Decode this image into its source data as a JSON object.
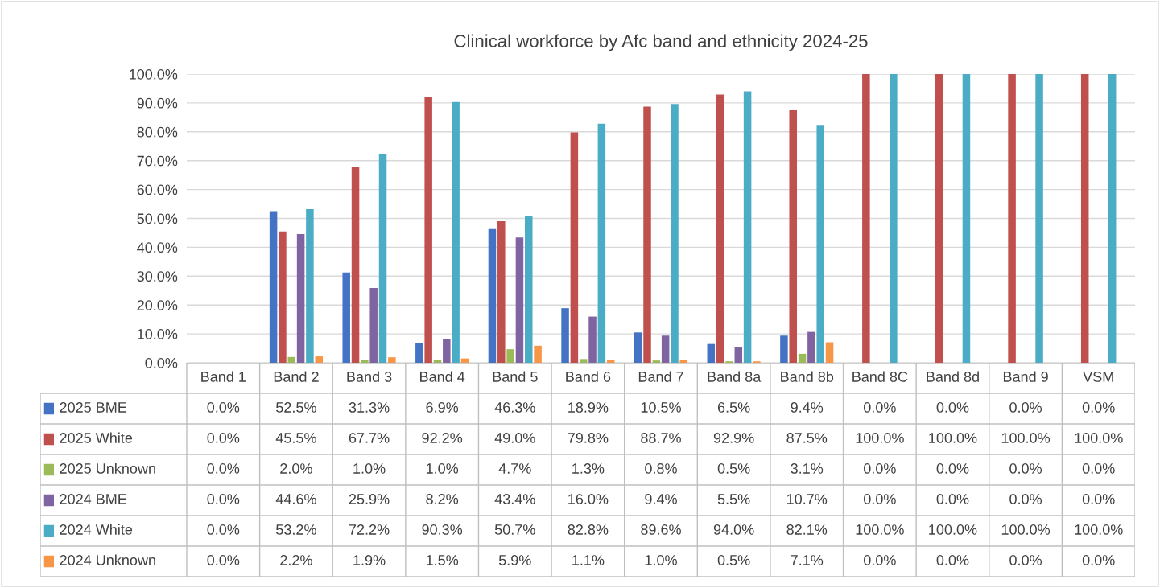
{
  "chart_data": {
    "type": "bar",
    "title": "Clinical workforce by Afc band and ethnicity 2024-25",
    "categories": [
      "Band 1",
      "Band 2",
      "Band 3",
      "Band 4",
      "Band 5",
      "Band 6",
      "Band 7",
      "Band 8a",
      "Band 8b",
      "Band 8C",
      "Band 8d",
      "Band 9",
      "VSM"
    ],
    "series": [
      {
        "name": "2025 BME",
        "color": "#4472c4",
        "values": [
          0.0,
          52.5,
          31.3,
          6.9,
          46.3,
          18.9,
          10.5,
          6.5,
          9.4,
          0.0,
          0.0,
          0.0,
          0.0
        ],
        "value_labels": [
          "0.0%",
          "52.5%",
          "31.3%",
          "6.9%",
          "46.3%",
          "18.9%",
          "10.5%",
          "6.5%",
          "9.4%",
          "0.0%",
          "0.0%",
          "0.0%",
          "0.0%"
        ]
      },
      {
        "name": "2025 White",
        "color": "#c0504d",
        "values": [
          0.0,
          45.5,
          67.7,
          92.2,
          49.0,
          79.8,
          88.7,
          92.9,
          87.5,
          100.0,
          100.0,
          100.0,
          100.0
        ],
        "value_labels": [
          "0.0%",
          "45.5%",
          "67.7%",
          "92.2%",
          "49.0%",
          "79.8%",
          "88.7%",
          "92.9%",
          "87.5%",
          "100.0%",
          "100.0%",
          "100.0%",
          "100.0%"
        ]
      },
      {
        "name": "2025 Unknown",
        "color": "#9bbb59",
        "values": [
          0.0,
          2.0,
          1.0,
          1.0,
          4.7,
          1.3,
          0.8,
          0.5,
          3.1,
          0.0,
          0.0,
          0.0,
          0.0
        ],
        "value_labels": [
          "0.0%",
          "2.0%",
          "1.0%",
          "1.0%",
          "4.7%",
          "1.3%",
          "0.8%",
          "0.5%",
          "3.1%",
          "0.0%",
          "0.0%",
          "0.0%",
          "0.0%"
        ]
      },
      {
        "name": "2024 BME",
        "color": "#8064a2",
        "values": [
          0.0,
          44.6,
          25.9,
          8.2,
          43.4,
          16.0,
          9.4,
          5.5,
          10.7,
          0.0,
          0.0,
          0.0,
          0.0
        ],
        "value_labels": [
          "0.0%",
          "44.6%",
          "25.9%",
          "8.2%",
          "43.4%",
          "16.0%",
          "9.4%",
          "5.5%",
          "10.7%",
          "0.0%",
          "0.0%",
          "0.0%",
          "0.0%"
        ]
      },
      {
        "name": "2024 White",
        "color": "#4bacc6",
        "values": [
          0.0,
          53.2,
          72.2,
          90.3,
          50.7,
          82.8,
          89.6,
          94.0,
          82.1,
          100.0,
          100.0,
          100.0,
          100.0
        ],
        "value_labels": [
          "0.0%",
          "53.2%",
          "72.2%",
          "90.3%",
          "50.7%",
          "82.8%",
          "89.6%",
          "94.0%",
          "82.1%",
          "100.0%",
          "100.0%",
          "100.0%",
          "100.0%"
        ]
      },
      {
        "name": "2024 Unknown",
        "color": "#f79646",
        "values": [
          0.0,
          2.2,
          1.9,
          1.5,
          5.9,
          1.1,
          1.0,
          0.5,
          7.1,
          0.0,
          0.0,
          0.0,
          0.0
        ],
        "value_labels": [
          "0.0%",
          "2.2%",
          "1.9%",
          "1.5%",
          "5.9%",
          "1.1%",
          "1.0%",
          "0.5%",
          "7.1%",
          "0.0%",
          "0.0%",
          "0.0%",
          "0.0%"
        ]
      }
    ],
    "ylim": [
      0,
      100
    ],
    "yticks": [
      {
        "value": 0,
        "label": "0.0%"
      },
      {
        "value": 10,
        "label": "10.0%"
      },
      {
        "value": 20,
        "label": "20.0%"
      },
      {
        "value": 30,
        "label": "30.0%"
      },
      {
        "value": 40,
        "label": "40.0%"
      },
      {
        "value": 50,
        "label": "50.0%"
      },
      {
        "value": 60,
        "label": "60.0%"
      },
      {
        "value": 70,
        "label": "70.0%"
      },
      {
        "value": 80,
        "label": "80.0%"
      },
      {
        "value": 90,
        "label": "90.0%"
      },
      {
        "value": 100,
        "label": "100.0%"
      }
    ],
    "grid": "y",
    "legend": "bottom"
  }
}
